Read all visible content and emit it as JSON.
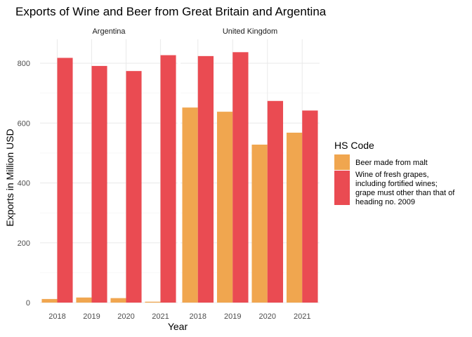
{
  "chart_data": {
    "type": "bar",
    "title": "Exports of Wine and Beer from Great Britain and Argentina",
    "xlabel": "Year",
    "ylabel": "Exports in Million USD",
    "ylim": [
      0,
      880
    ],
    "yticks": [
      0,
      200,
      400,
      600,
      800
    ],
    "categories": [
      "2018",
      "2019",
      "2020",
      "2021"
    ],
    "facets": [
      "Argentina",
      "United Kingdom"
    ],
    "legend_title": "HS Code",
    "legend_position": "right",
    "grid": true,
    "series": [
      {
        "name": "Beer made from malt",
        "label_lines": [
          "Beer made from malt"
        ],
        "color": "#F0A64F",
        "values": {
          "Argentina": [
            12,
            17,
            15,
            3
          ],
          "United Kingdom": [
            652,
            638,
            528,
            568
          ]
        }
      },
      {
        "name": "Wine of fresh grapes, including fortified wines; grape must other than that of heading no. 2009",
        "label_lines": [
          "Wine of fresh grapes,",
          "including fortified wines;",
          "grape must other than that of",
          "heading no. 2009"
        ],
        "color": "#EA4B52",
        "values": {
          "Argentina": [
            818,
            791,
            774,
            827
          ],
          "United Kingdom": [
            824,
            837,
            674,
            642
          ]
        }
      }
    ]
  }
}
